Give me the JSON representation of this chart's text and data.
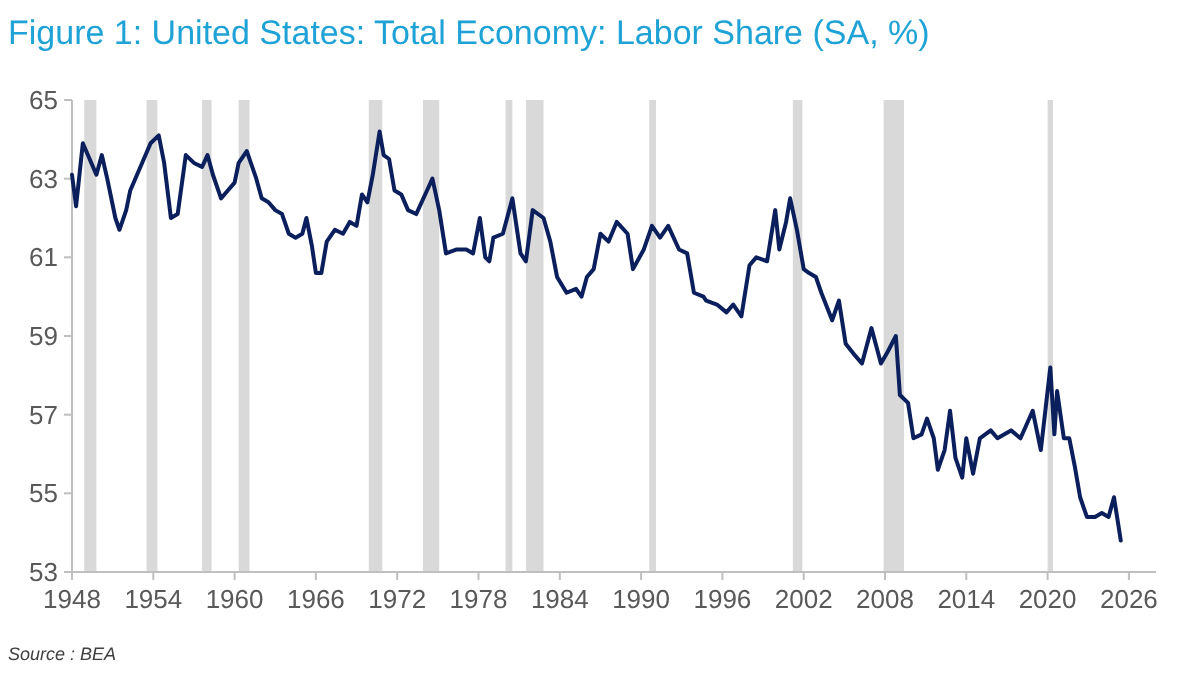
{
  "chart_data": {
    "type": "line",
    "title": "Figure 1: United States: Total Economy: Labor Share (SA, %)",
    "annotations": [
      "Source : BEA"
    ],
    "x": [
      1948.0,
      1948.3,
      1948.8,
      1949.3,
      1949.8,
      1950.2,
      1950.6,
      1951.2,
      1951.5,
      1952.0,
      1952.3,
      1952.8,
      1953.3,
      1953.8,
      1954.4,
      1954.8,
      1955.3,
      1955.8,
      1956.4,
      1957.0,
      1957.6,
      1958.0,
      1958.4,
      1959.0,
      1959.5,
      1960.0,
      1960.3,
      1960.9,
      1961.6,
      1962.0,
      1962.5,
      1963.0,
      1963.5,
      1964.0,
      1964.5,
      1965.0,
      1965.3,
      1965.7,
      1966.0,
      1966.4,
      1966.8,
      1967.4,
      1968.0,
      1968.5,
      1969.0,
      1969.4,
      1969.8,
      1970.2,
      1970.7,
      1971.0,
      1971.4,
      1971.8,
      1972.3,
      1972.8,
      1973.4,
      1974.2,
      1974.6,
      1975.1,
      1975.6,
      1976.4,
      1977.1,
      1977.6,
      1978.1,
      1978.5,
      1978.8,
      1979.1,
      1979.8,
      1980.5,
      1981.1,
      1981.5,
      1982.0,
      1982.8,
      1983.3,
      1983.8,
      1984.5,
      1985.2,
      1985.6,
      1986.0,
      1986.5,
      1987.0,
      1987.6,
      1988.2,
      1989.0,
      1989.4,
      1990.2,
      1990.8,
      1991.4,
      1992.0,
      1992.8,
      1993.4,
      1993.9,
      1994.6,
      1994.8,
      1995.6,
      1996.3,
      1996.8,
      1997.4,
      1998.0,
      1998.5,
      1999.3,
      1999.9,
      2000.2,
      2000.7,
      2001.0,
      2001.5,
      2002.0,
      2002.4,
      2002.9,
      2003.3,
      2004.1,
      2004.6,
      2005.1,
      2005.8,
      2006.3,
      2007.0,
      2007.7,
      2008.2,
      2008.8,
      2009.1,
      2009.7,
      2010.1,
      2010.7,
      2011.1,
      2011.6,
      2011.9,
      2012.4,
      2012.8,
      2013.2,
      2013.7,
      2014.0,
      2014.5,
      2015.0,
      2015.8,
      2016.3,
      2017.3,
      2018.0,
      2018.9,
      2019.5,
      2020.2,
      2020.5,
      2020.7,
      2021.2,
      2021.6,
      2022.0,
      2022.4,
      2022.9,
      2023.5,
      2024.0,
      2024.5,
      2024.9,
      2025.4
    ],
    "series": [
      {
        "color": "#0b1f5c",
        "values": [
          63.1,
          62.3,
          63.9,
          63.5,
          63.1,
          63.6,
          63.0,
          62.0,
          61.7,
          62.2,
          62.7,
          63.1,
          63.5,
          63.9,
          64.1,
          63.4,
          62.0,
          62.1,
          63.6,
          63.4,
          63.3,
          63.6,
          63.1,
          62.5,
          62.7,
          62.9,
          63.4,
          63.7,
          63.0,
          62.5,
          62.4,
          62.2,
          62.1,
          61.6,
          61.5,
          61.6,
          62.0,
          61.3,
          60.6,
          60.6,
          61.4,
          61.7,
          61.6,
          61.9,
          61.8,
          62.6,
          62.4,
          63.1,
          64.2,
          63.6,
          63.5,
          62.7,
          62.6,
          62.2,
          62.1,
          62.7,
          63.0,
          62.2,
          61.1,
          61.2,
          61.2,
          61.1,
          62.0,
          61.0,
          60.9,
          61.5,
          61.6,
          62.5,
          61.1,
          60.9,
          62.2,
          62.0,
          61.4,
          60.5,
          60.1,
          60.2,
          60.0,
          60.5,
          60.7,
          61.6,
          61.4,
          61.9,
          61.6,
          60.7,
          61.2,
          61.8,
          61.5,
          61.8,
          61.2,
          61.1,
          60.1,
          60.0,
          59.9,
          59.8,
          59.6,
          59.8,
          59.5,
          60.8,
          61.0,
          60.9,
          62.2,
          61.2,
          61.9,
          62.5,
          61.7,
          60.7,
          60.6,
          60.5,
          60.1,
          59.4,
          59.9,
          58.8,
          58.5,
          58.3,
          59.2,
          58.3,
          58.6,
          59.0,
          57.5,
          57.3,
          56.4,
          56.5,
          56.9,
          56.4,
          55.6,
          56.1,
          57.1,
          55.9,
          55.4,
          56.4,
          55.5,
          56.4,
          56.6,
          56.4,
          56.6,
          56.4,
          57.1,
          56.1,
          58.2,
          56.5,
          57.6,
          56.4,
          56.4,
          55.7,
          54.9,
          54.4,
          54.4,
          54.5,
          54.4,
          54.9,
          53.8
        ]
      }
    ],
    "xlim": [
      1948,
      2028
    ],
    "xticks": [
      1948,
      1954,
      1960,
      1966,
      1972,
      1978,
      1984,
      1990,
      1996,
      2002,
      2008,
      2014,
      2020,
      2026
    ],
    "ylim": [
      53,
      65
    ],
    "yticks": [
      53,
      55,
      57,
      59,
      61,
      63,
      65
    ],
    "grid": false,
    "marker": "none",
    "line_style": "solid",
    "bands": [
      {
        "axis": "x",
        "from": 1948.9,
        "to": 1949.8,
        "color": "#d9d9d9"
      },
      {
        "axis": "x",
        "from": 1953.5,
        "to": 1954.3,
        "color": "#d9d9d9"
      },
      {
        "axis": "x",
        "from": 1957.6,
        "to": 1958.3,
        "color": "#d9d9d9"
      },
      {
        "axis": "x",
        "from": 1960.3,
        "to": 1961.1,
        "color": "#d9d9d9"
      },
      {
        "axis": "x",
        "from": 1969.9,
        "to": 1970.9,
        "color": "#d9d9d9"
      },
      {
        "axis": "x",
        "from": 1973.9,
        "to": 1975.1,
        "color": "#d9d9d9"
      },
      {
        "axis": "x",
        "from": 1980.0,
        "to": 1980.5,
        "color": "#d9d9d9"
      },
      {
        "axis": "x",
        "from": 1981.5,
        "to": 1982.8,
        "color": "#d9d9d9"
      },
      {
        "axis": "x",
        "from": 1990.6,
        "to": 1991.1,
        "color": "#d9d9d9"
      },
      {
        "axis": "x",
        "from": 2001.2,
        "to": 2001.9,
        "color": "#d9d9d9"
      },
      {
        "axis": "x",
        "from": 2007.9,
        "to": 2009.4,
        "color": "#d9d9d9"
      },
      {
        "axis": "x",
        "from": 2020.0,
        "to": 2020.4,
        "color": "#d9d9d9"
      }
    ]
  }
}
